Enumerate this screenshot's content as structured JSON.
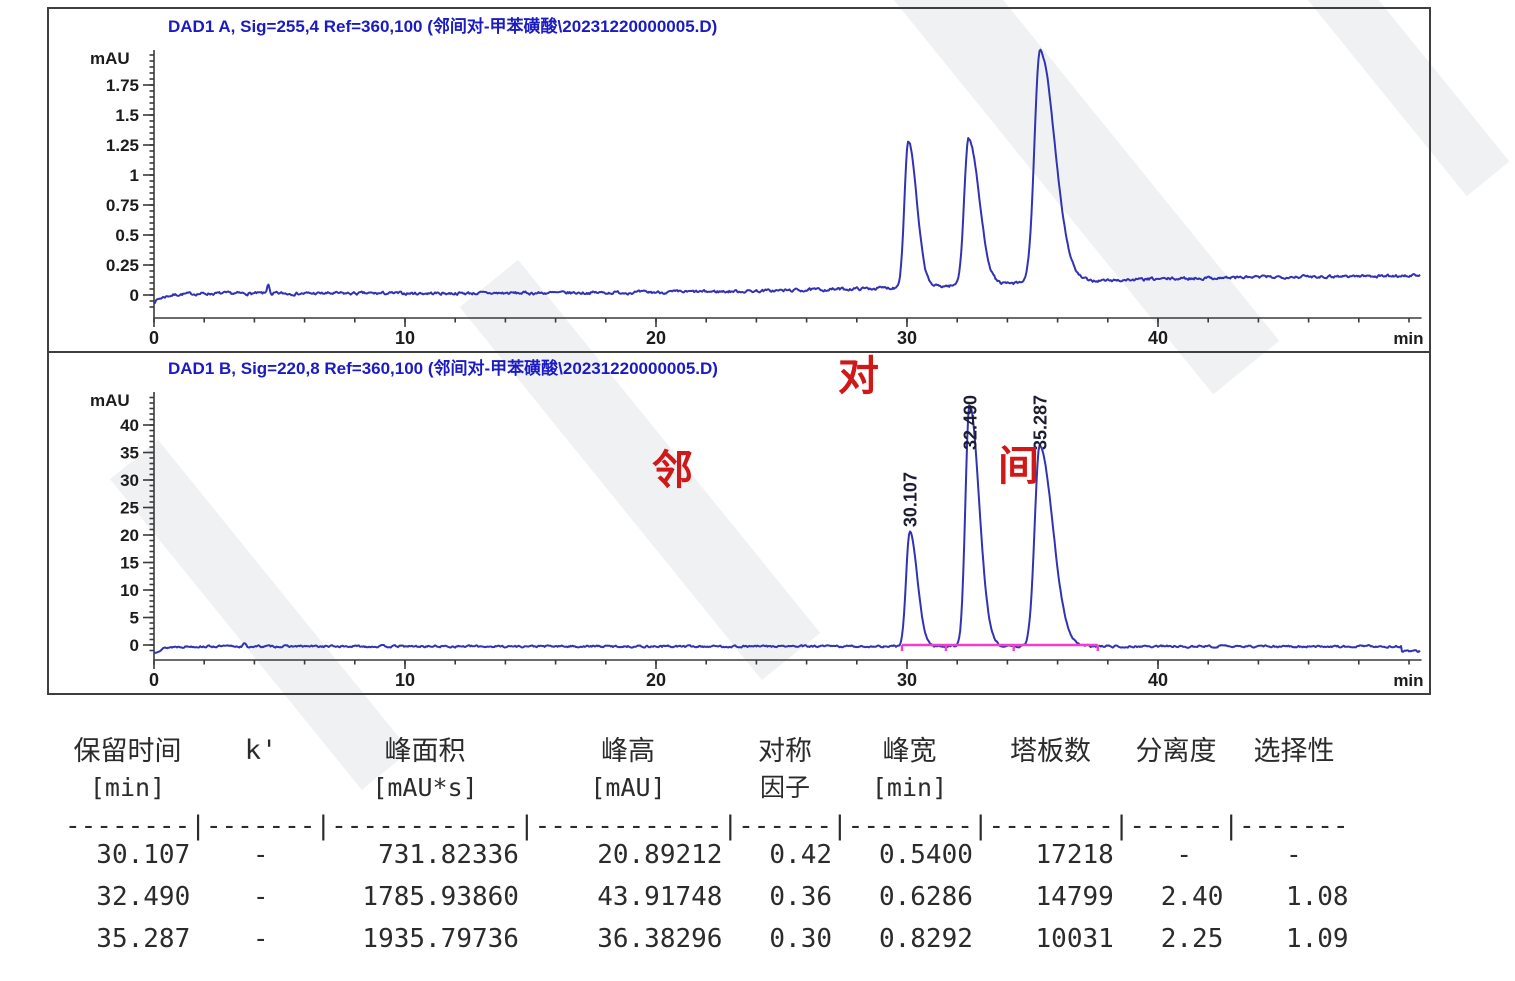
{
  "chart_data": [
    {
      "type": "line",
      "title": "DAD1 A, Sig=255,4 Ref=360,100 (邻间对-甲苯磺酸\\20231220000005.D)",
      "ylabel": "mAU",
      "xlabel": "min",
      "xlim": [
        0,
        50.5
      ],
      "ylim": [
        -0.2,
        2.04
      ],
      "xticks": [
        "0",
        "10",
        "20",
        "30",
        "40"
      ],
      "yticks": [
        "0",
        "0.25",
        "0.5",
        "0.75",
        "1",
        "1.25",
        "1.5",
        "1.75"
      ],
      "x_minor_step": 2,
      "y_minor_step": 0.05,
      "grid": false,
      "trace_color": "#3232b4",
      "peaks": [
        {
          "rt": 30.05,
          "height": 1.22
        },
        {
          "rt": 32.45,
          "height": 1.22
        },
        {
          "rt": 35.3,
          "height": 1.93
        }
      ],
      "artifact_spike": {
        "rt": 4.55,
        "height": 0.085
      }
    },
    {
      "type": "line",
      "title": "DAD1 B, Sig=220,8 Ref=360,100 (邻间对-甲苯磺酸\\20231220000005.D)",
      "ylabel": "mAU",
      "xlabel": "min",
      "xlim": [
        0,
        50.5
      ],
      "ylim": [
        -2.7,
        46
      ],
      "xticks": [
        "0",
        "10",
        "20",
        "30",
        "40"
      ],
      "yticks": [
        "0",
        "5",
        "10",
        "15",
        "20",
        "25",
        "30",
        "35",
        "40"
      ],
      "x_minor_step": 2,
      "y_minor_step": 1,
      "grid": false,
      "trace_color": "#3232b4",
      "peaks": [
        {
          "rt": 30.107,
          "height": 20.89212,
          "label": "30.107"
        },
        {
          "rt": 32.49,
          "height": 43.91748,
          "label": "32.490"
        },
        {
          "rt": 35.287,
          "height": 36.38296,
          "label": "35.287"
        }
      ],
      "artifact_spike": {
        "rt": 3.6,
        "height": 0.55
      },
      "integration_baseline": {
        "start": 29.8,
        "end": 37.6,
        "tick_times": [
          29.8,
          31.55,
          34.25,
          37.6
        ],
        "color": "#ee3fd0"
      },
      "annotations": [
        {
          "text": "对",
          "color": "#d01818"
        },
        {
          "text": "邻",
          "color": "#d01818"
        },
        {
          "text": "间",
          "color": "#d01818"
        }
      ]
    }
  ],
  "results_table": {
    "headers": [
      {
        "line1": "保留时间",
        "line2": "[min]"
      },
      {
        "line1": "k'",
        "line2": ""
      },
      {
        "line1": "峰面积",
        "line2": "[mAU*s]"
      },
      {
        "line1": "峰高",
        "line2": "[mAU]"
      },
      {
        "line1": "对称",
        "line2": "因子"
      },
      {
        "line1": "峰宽",
        "line2": "[min]"
      },
      {
        "line1": "塔板数",
        "line2": ""
      },
      {
        "line1": "分离度",
        "line2": ""
      },
      {
        "line1": "选择性",
        "line2": ""
      }
    ],
    "separator": "--------|-------|------------|------------|------|--------|--------|------|-------",
    "rows": [
      [
        "30.107",
        "-",
        "731.82336",
        "20.89212",
        "0.42",
        "0.5400",
        "17218",
        "-",
        "-"
      ],
      [
        "32.490",
        "-",
        "1785.93860",
        "43.91748",
        "0.36",
        "0.6286",
        "14799",
        "2.40",
        "1.08"
      ],
      [
        "35.287",
        "-",
        "1935.79736",
        "36.38296",
        "0.30",
        "0.8292",
        "10031",
        "2.25",
        "1.09"
      ]
    ]
  }
}
